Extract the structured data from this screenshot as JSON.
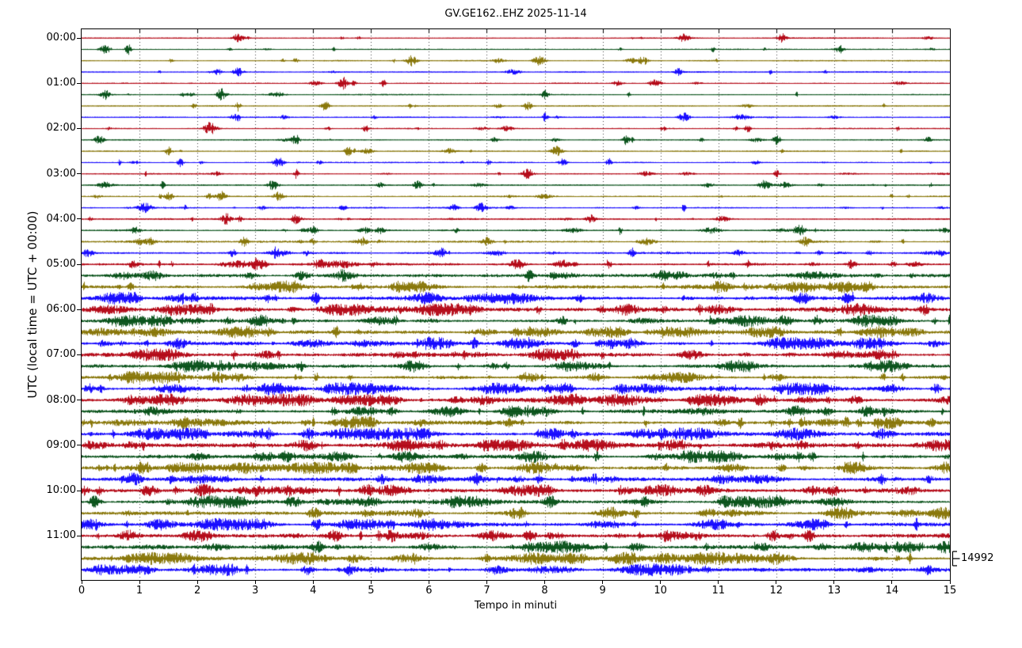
{
  "title": "GV.GE162..EHZ 2025-11-14",
  "axes": {
    "xlabel": "Tempo in minuti",
    "ylabel": "UTC (local time = UTC + 00:00)",
    "x_ticks": [
      "0",
      "1",
      "2",
      "3",
      "4",
      "5",
      "6",
      "7",
      "8",
      "9",
      "10",
      "11",
      "12",
      "13",
      "14",
      "15"
    ],
    "y_ticks": [
      "00:00",
      "01:00",
      "02:00",
      "03:00",
      "04:00",
      "05:00",
      "06:00",
      "07:00",
      "08:00",
      "09:00",
      "10:00",
      "11:00"
    ]
  },
  "scale_label": "14992",
  "chart_data": {
    "type": "line",
    "subtype": "helicorder-dayplot",
    "station_id": "GV.GE162..EHZ",
    "date": "2025-11-14",
    "title": "GV.GE162..EHZ 2025-11-14",
    "xlabel": "Tempo in minuti",
    "ylabel": "UTC (local time = UTC + 00:00)",
    "xlim": [
      0,
      15
    ],
    "minutes_per_row": 15,
    "rows_per_hour": 4,
    "grid": "dotted vertical lines at each minute",
    "legend": "none",
    "amplitude_scale_counts": 14992,
    "trace_colors": [
      "#B2000F",
      "#004C12",
      "#847200",
      "#0E01FF"
    ],
    "frame_color": "#000000",
    "rows": [
      {
        "time": "00:00",
        "color": "#B2000F",
        "activity": 0.1,
        "major_bursts": [
          2.7,
          10.4,
          12.1
        ]
      },
      {
        "time": "00:15",
        "color": "#004C12",
        "activity": 0.12,
        "major_bursts": [
          0.4,
          0.8,
          13.1
        ]
      },
      {
        "time": "00:30",
        "color": "#847200",
        "activity": 0.12,
        "major_bursts": [
          5.7,
          7.9,
          9.7
        ]
      },
      {
        "time": "00:45",
        "color": "#0E01FF",
        "activity": 0.15,
        "major_bursts": [
          2.7,
          10.3
        ]
      },
      {
        "time": "01:00",
        "color": "#B2000F",
        "activity": 0.13,
        "major_bursts": [
          4.5,
          5.2,
          9.9
        ]
      },
      {
        "time": "01:15",
        "color": "#004C12",
        "activity": 0.14,
        "major_bursts": [
          0.4,
          2.4,
          8.0
        ]
      },
      {
        "time": "01:30",
        "color": "#847200",
        "activity": 0.13,
        "major_bursts": [
          2.7,
          4.2,
          7.7
        ]
      },
      {
        "time": "01:45",
        "color": "#0E01FF",
        "activity": 0.16,
        "major_bursts": [
          2.7,
          8.0,
          10.4
        ]
      },
      {
        "time": "02:00",
        "color": "#B2000F",
        "activity": 0.14,
        "major_bursts": [
          2.2,
          4.9,
          11.5
        ]
      },
      {
        "time": "02:15",
        "color": "#004C12",
        "activity": 0.13,
        "major_bursts": [
          0.3,
          3.7,
          9.4,
          12.0
        ]
      },
      {
        "time": "02:30",
        "color": "#847200",
        "activity": 0.14,
        "major_bursts": [
          1.5,
          4.6,
          8.2
        ]
      },
      {
        "time": "02:45",
        "color": "#0E01FF",
        "activity": 0.18,
        "major_bursts": [
          1.7,
          3.4,
          8.3,
          9.1
        ]
      },
      {
        "time": "03:00",
        "color": "#B2000F",
        "activity": 0.15,
        "major_bursts": [
          3.7,
          7.7,
          12.0
        ]
      },
      {
        "time": "03:15",
        "color": "#004C12",
        "activity": 0.16,
        "major_bursts": [
          1.4,
          3.3,
          5.8,
          11.8
        ]
      },
      {
        "time": "03:30",
        "color": "#847200",
        "activity": 0.18,
        "major_bursts": [
          1.5,
          2.4,
          3.4
        ]
      },
      {
        "time": "03:45",
        "color": "#0E01FF",
        "activity": 0.2,
        "major_bursts": [
          1.1,
          6.9,
          10.4
        ]
      },
      {
        "time": "04:00",
        "color": "#B2000F",
        "activity": 0.22,
        "major_bursts": [
          2.5,
          3.7,
          8.8
        ]
      },
      {
        "time": "04:15",
        "color": "#004C12",
        "activity": 0.26,
        "major_bursts": [
          4.0,
          9.3,
          12.4
        ]
      },
      {
        "time": "04:30",
        "color": "#847200",
        "activity": 0.3,
        "major_bursts": [
          2.8,
          7.0,
          12.5
        ]
      },
      {
        "time": "04:45",
        "color": "#0E01FF",
        "activity": 0.34,
        "major_bursts": [
          2.6,
          6.2,
          9.5
        ]
      },
      {
        "time": "05:00",
        "color": "#B2000F",
        "activity": 0.48,
        "major_bursts": [
          4.1,
          9.1,
          13.3
        ]
      },
      {
        "time": "05:15",
        "color": "#004C12",
        "activity": 0.62,
        "major_bursts": []
      },
      {
        "time": "05:30",
        "color": "#847200",
        "activity": 0.68,
        "major_bursts": []
      },
      {
        "time": "05:45",
        "color": "#0E01FF",
        "activity": 0.72,
        "major_bursts": []
      },
      {
        "time": "06:00",
        "color": "#B2000F",
        "activity": 0.78,
        "major_bursts": []
      },
      {
        "time": "06:15",
        "color": "#004C12",
        "activity": 0.7,
        "major_bursts": []
      },
      {
        "time": "06:30",
        "color": "#847200",
        "activity": 0.73,
        "major_bursts": []
      },
      {
        "time": "06:45",
        "color": "#0E01FF",
        "activity": 0.76,
        "major_bursts": []
      },
      {
        "time": "07:00",
        "color": "#B2000F",
        "activity": 0.8,
        "major_bursts": []
      },
      {
        "time": "07:15",
        "color": "#004C12",
        "activity": 0.72,
        "major_bursts": []
      },
      {
        "time": "07:30",
        "color": "#847200",
        "activity": 0.74,
        "major_bursts": []
      },
      {
        "time": "07:45",
        "color": "#0E01FF",
        "activity": 0.72,
        "major_bursts": []
      },
      {
        "time": "08:00",
        "color": "#B2000F",
        "activity": 0.82,
        "major_bursts": []
      },
      {
        "time": "08:15",
        "color": "#004C12",
        "activity": 0.74,
        "major_bursts": []
      },
      {
        "time": "08:30",
        "color": "#847200",
        "activity": 0.78,
        "major_bursts": []
      },
      {
        "time": "08:45",
        "color": "#0E01FF",
        "activity": 0.76,
        "major_bursts": []
      },
      {
        "time": "09:00",
        "color": "#B2000F",
        "activity": 0.78,
        "major_bursts": []
      },
      {
        "time": "09:15",
        "color": "#004C12",
        "activity": 0.72,
        "major_bursts": []
      },
      {
        "time": "09:30",
        "color": "#847200",
        "activity": 0.8,
        "major_bursts": []
      },
      {
        "time": "09:45",
        "color": "#0E01FF",
        "activity": 0.78,
        "major_bursts": []
      },
      {
        "time": "10:00",
        "color": "#B2000F",
        "activity": 0.82,
        "major_bursts": []
      },
      {
        "time": "10:15",
        "color": "#004C12",
        "activity": 0.76,
        "major_bursts": []
      },
      {
        "time": "10:30",
        "color": "#847200",
        "activity": 0.72,
        "major_bursts": []
      },
      {
        "time": "10:45",
        "color": "#0E01FF",
        "activity": 0.76,
        "major_bursts": []
      },
      {
        "time": "11:00",
        "color": "#B2000F",
        "activity": 0.7,
        "major_bursts": []
      },
      {
        "time": "11:15",
        "color": "#004C12",
        "activity": 0.73,
        "major_bursts": [
          13.9,
          14.5
        ]
      },
      {
        "time": "11:30",
        "color": "#847200",
        "activity": 0.78,
        "major_bursts": [
          7.0,
          14.3
        ]
      },
      {
        "time": "11:45",
        "color": "#0E01FF",
        "activity": 0.72,
        "major_bursts": [
          3.9,
          4.6
        ]
      }
    ]
  }
}
